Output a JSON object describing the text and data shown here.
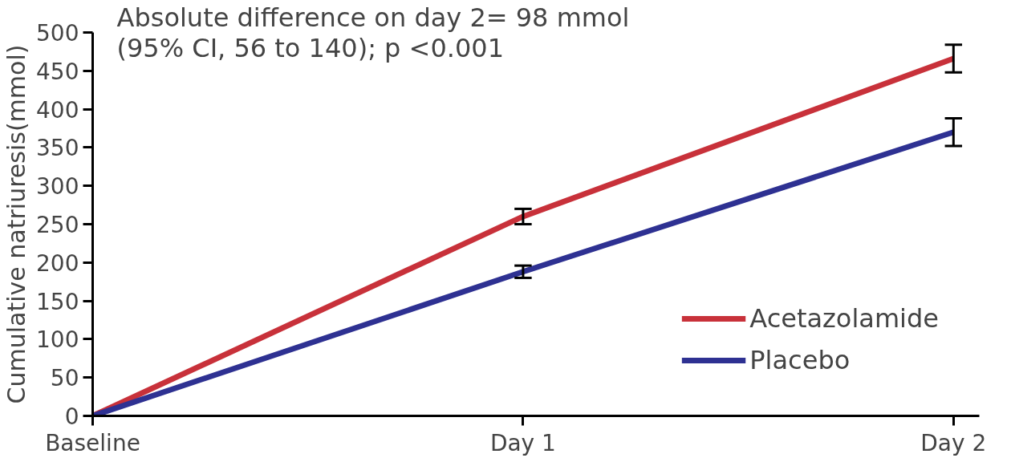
{
  "chart_data": {
    "type": "line",
    "ylabel": "Cumulative natriuresis(mmol)",
    "categories": [
      "Baseline",
      "Day 1",
      "Day 2"
    ],
    "series": [
      {
        "name": "Acetazolamide",
        "color": "#c8313a",
        "values": [
          0,
          260,
          466
        ],
        "errors": [
          null,
          10,
          18
        ]
      },
      {
        "name": "Placebo",
        "color": "#2e3192",
        "values": [
          0,
          188,
          370
        ],
        "errors": [
          null,
          8,
          18
        ]
      }
    ],
    "ylim": [
      0,
      500
    ],
    "yticks": [
      0,
      50,
      100,
      150,
      200,
      250,
      300,
      350,
      400,
      450,
      500
    ],
    "annotations": [
      "Absolute difference on day 2= 98 mmol",
      "(95% CI, 56 to 140); p <0.001"
    ],
    "grid": false,
    "legend": "bottom right",
    "marker": "none",
    "line_style": "solid"
  }
}
